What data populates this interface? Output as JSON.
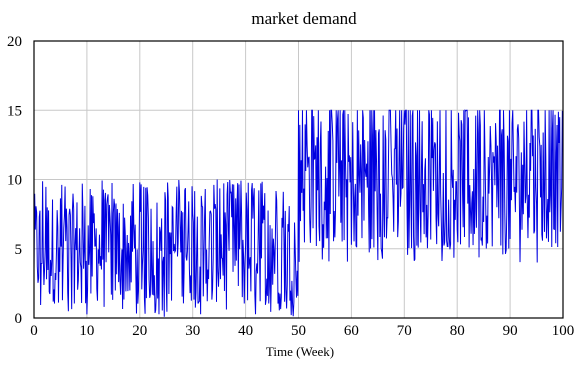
{
  "chart_data": {
    "type": "line",
    "title": "market demand",
    "xlabel": "Time (Week)",
    "ylabel": "",
    "xlim": [
      0,
      100
    ],
    "ylim": [
      0,
      20
    ],
    "xticks": [
      0,
      10,
      20,
      30,
      40,
      50,
      60,
      70,
      80,
      90,
      100
    ],
    "yticks": [
      0,
      5,
      10,
      15,
      20
    ],
    "grid": true,
    "series": [
      {
        "name": "",
        "color": "#0000e0",
        "x_step": 0.125,
        "regimes": [
          {
            "x_start": 0,
            "x_end": 50,
            "min": 0,
            "max": 10,
            "typical_low": 1,
            "typical_high": 9
          },
          {
            "x_start": 50,
            "x_end": 100,
            "min": 4,
            "max": 15,
            "typical_low": 5,
            "typical_high": 15
          }
        ]
      }
    ]
  }
}
